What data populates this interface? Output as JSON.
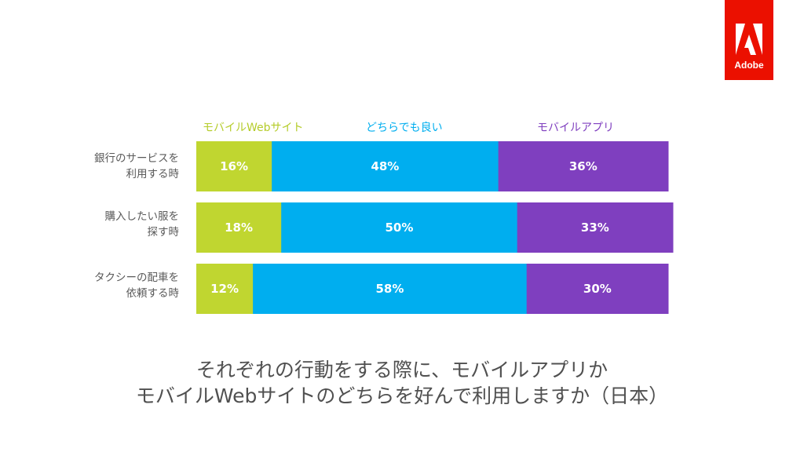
{
  "brand": {
    "name": "Adobe",
    "color": "#eb1000"
  },
  "chart_data": {
    "type": "bar",
    "orientation": "horizontal",
    "stacked": true,
    "grid": false,
    "legend_position": "top",
    "categories": [
      [
        "銀行のサービスを",
        "利用する時"
      ],
      [
        "購入したい服を",
        "探す時"
      ],
      [
        "タクシーの配車を",
        "依頼する時"
      ]
    ],
    "series": [
      {
        "name": "モバイルWebサイト",
        "color": "#c0d630",
        "values": [
          16,
          18,
          12
        ],
        "labels": [
          "16%",
          "18%",
          "12%"
        ]
      },
      {
        "name": "どちらでも良い",
        "color": "#00aeef",
        "values": [
          48,
          50,
          58
        ],
        "labels": [
          "48%",
          "50%",
          "58%"
        ]
      },
      {
        "name": "モバイルアプリ",
        "color": "#7f3fbf",
        "values": [
          36,
          33,
          30
        ],
        "labels": [
          "36%",
          "33%",
          "30%"
        ]
      }
    ],
    "title": "それぞれの行動をする際に、モバイルアプリか\nモバイルWebサイトのどちらを好んで利用しますか（日本）",
    "xlim": [
      0,
      100
    ]
  },
  "caption": {
    "line1": "それぞれの行動をする際に、モバイルアプリか",
    "line2": "モバイルWebサイトのどちらを好んで利用しますか（日本）"
  }
}
